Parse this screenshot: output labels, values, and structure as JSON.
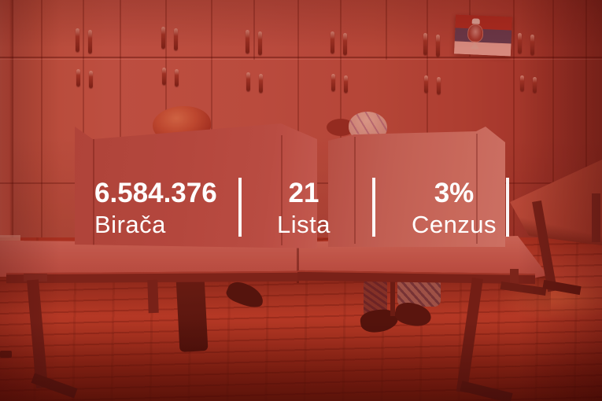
{
  "overlay": {
    "stats": [
      {
        "value": "6.584.376",
        "label": "Birača"
      },
      {
        "value": "21",
        "label": "Lista"
      },
      {
        "value": "3%",
        "label": "Cenzus"
      }
    ]
  },
  "icons": {
    "flag": "serbian-flag"
  },
  "colors": {
    "overlay_text": "#ffffff",
    "divider": "#ffffff",
    "photo_tint_red": "#b5473a",
    "flag_red": "#a82c21",
    "flag_blue": "#5e3a4e",
    "flag_white": "#d9978b"
  }
}
